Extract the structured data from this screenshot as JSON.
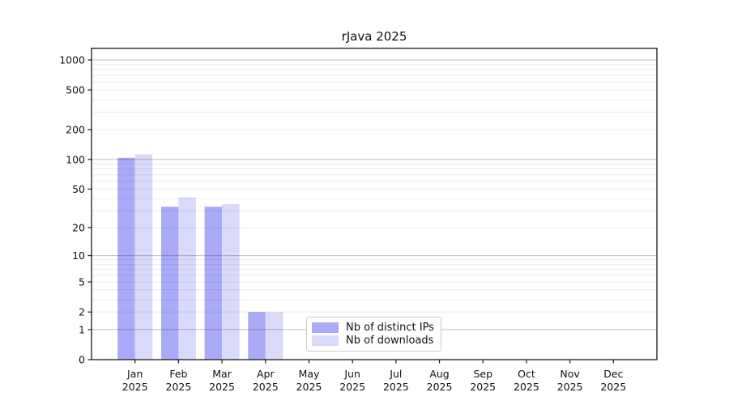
{
  "chart_data": {
    "type": "bar",
    "title": "rJava 2025",
    "categories": [
      "Jan 2025",
      "Feb 2025",
      "Mar 2025",
      "Apr 2025",
      "May 2025",
      "Jun 2025",
      "Jul 2025",
      "Aug 2025",
      "Sep 2025",
      "Oct 2025",
      "Nov 2025",
      "Dec 2025"
    ],
    "series": [
      {
        "name": "Nb of distinct IPs",
        "color": "#aaaaf8",
        "values": [
          104,
          33,
          33,
          2,
          0,
          0,
          0,
          0,
          0,
          0,
          0,
          0
        ]
      },
      {
        "name": "Nb of downloads",
        "color": "#d9d9f9",
        "values": [
          113,
          41,
          35,
          2,
          0,
          0,
          0,
          0,
          0,
          0,
          0,
          0
        ]
      }
    ],
    "xlabel": "",
    "ylabel": "",
    "y_axis": {
      "scale": "log1p",
      "max": 1000,
      "tick_values": [
        0,
        1,
        2,
        5,
        10,
        20,
        50,
        100,
        200,
        500,
        1000
      ],
      "tick_labels": [
        "0",
        "1",
        "2",
        "5",
        "10",
        "20",
        "50",
        "100",
        "200",
        "500",
        "1000"
      ],
      "major_gridlines": [
        1,
        10,
        100,
        1000
      ],
      "minor_gridlines": [
        2,
        3,
        4,
        5,
        6,
        7,
        8,
        9,
        20,
        30,
        40,
        50,
        60,
        70,
        80,
        90,
        200,
        300,
        400,
        500,
        600,
        700,
        800,
        900
      ],
      "grid": true
    },
    "legend_position": "lower center",
    "colors": {
      "major_grid": "rgba(0,0,0,0.26)",
      "minor_grid": "rgba(0,0,0,0.08)",
      "spine": "#1a1a1a",
      "tick_text": "#111111"
    }
  }
}
